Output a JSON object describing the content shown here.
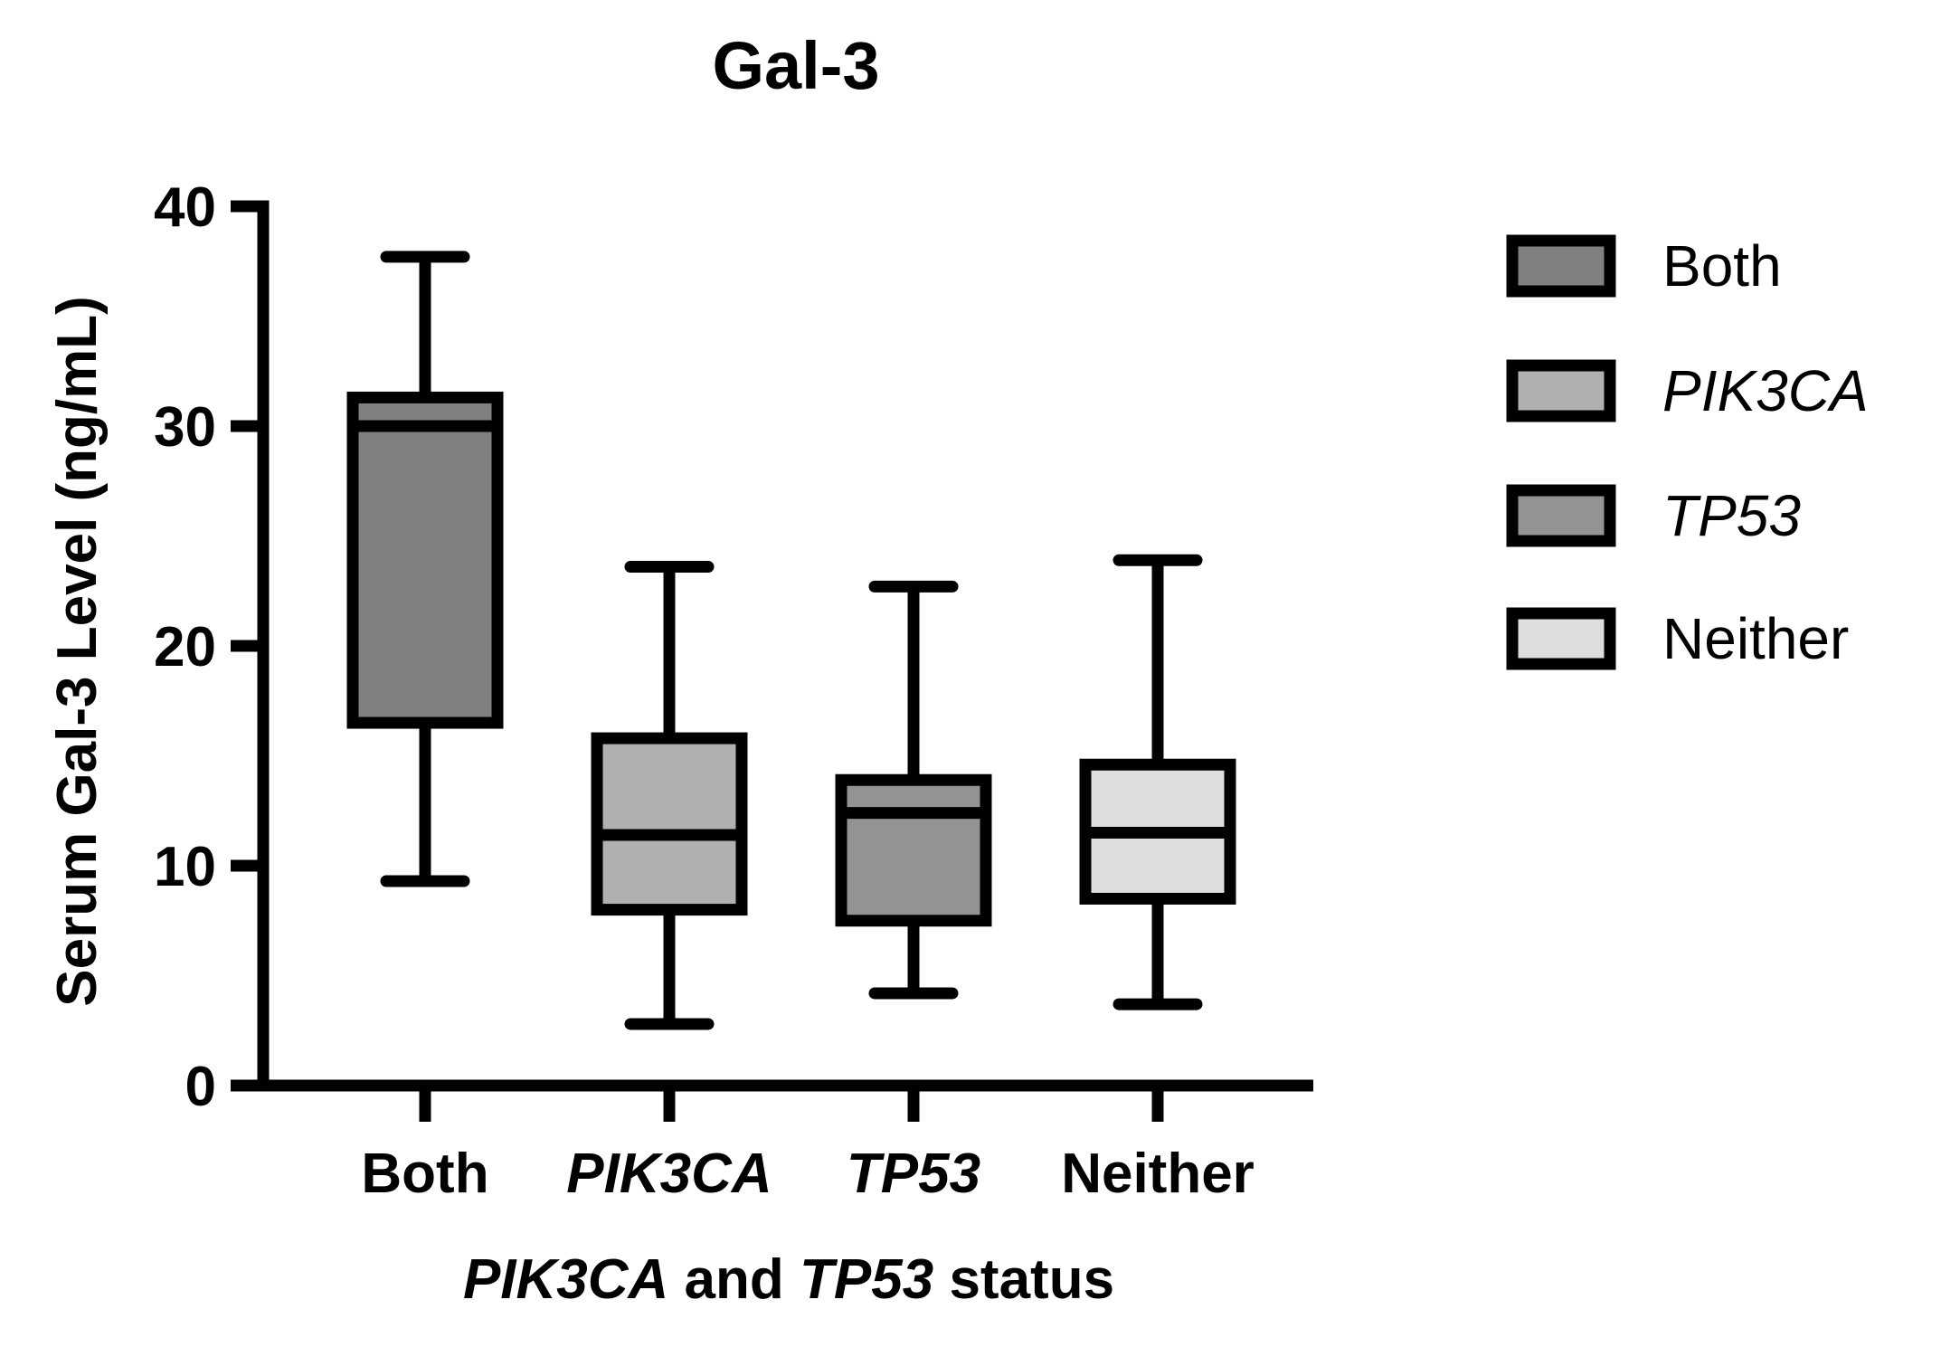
{
  "chart_data": {
    "type": "box",
    "title": "Gal-3",
    "ylabel": "Serum Gal-3 Level (ng/mL)",
    "xlabel_parts": [
      {
        "text": "PIK3CA",
        "italic": true
      },
      {
        "text": " and ",
        "italic": false
      },
      {
        "text": "TP53",
        "italic": true
      },
      {
        "text": " status",
        "italic": false
      }
    ],
    "ylim": [
      0,
      40
    ],
    "yticks": [
      0,
      10,
      20,
      30,
      40
    ],
    "grid": false,
    "legend_position": "top-right",
    "series": [
      {
        "name": "Both",
        "italic": false,
        "color": "#808080",
        "whisker_low": 9.3,
        "q1": 16.5,
        "median": 30.0,
        "q3": 31.3,
        "whisker_high": 37.7
      },
      {
        "name": "PIK3CA",
        "italic": true,
        "color": "#b0b0b0",
        "whisker_low": 2.8,
        "q1": 8.0,
        "median": 11.4,
        "q3": 15.8,
        "whisker_high": 23.6
      },
      {
        "name": "TP53",
        "italic": true,
        "color": "#939393",
        "whisker_low": 4.2,
        "q1": 7.5,
        "median": 12.4,
        "q3": 13.9,
        "whisker_high": 22.7
      },
      {
        "name": "Neither",
        "italic": false,
        "color": "#dedede",
        "whisker_low": 3.7,
        "q1": 8.5,
        "median": 11.5,
        "q3": 14.6,
        "whisker_high": 23.9
      }
    ]
  }
}
